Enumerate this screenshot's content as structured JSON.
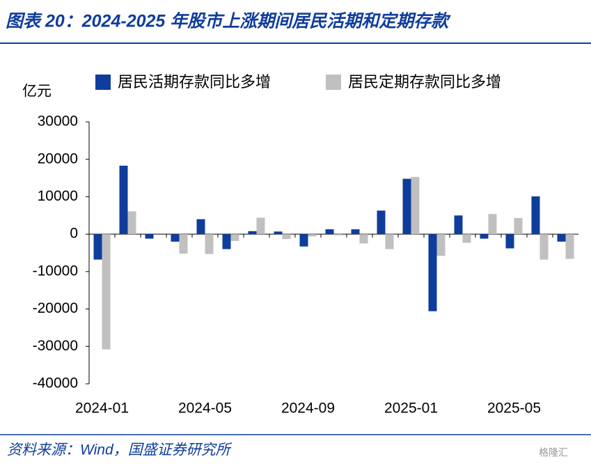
{
  "chart_data": {
    "type": "bar",
    "title": "图表 20：2024-2025 年股市上涨期间居民活期和定期存款",
    "y_label": "亿元",
    "source": "资料来源：Wind，国盛证券研究所",
    "watermark": "格隆汇",
    "categories": [
      "2024-01",
      null,
      null,
      null,
      "2024-05",
      null,
      null,
      null,
      "2024-09",
      null,
      null,
      null,
      "2025-01",
      null,
      null,
      null,
      "2025-05",
      null,
      null
    ],
    "series": [
      {
        "name": "居民活期存款同比多增",
        "color": "#0f3d9c",
        "values": [
          -6800,
          18300,
          -1200,
          -2000,
          4000,
          -4000,
          800,
          700,
          -3300,
          1300,
          1300,
          6300,
          14800,
          -20600,
          5000,
          -1200,
          -3800,
          10100,
          -2000
        ]
      },
      {
        "name": "居民定期存款同比多增",
        "color": "#c0c0c0",
        "values": [
          -30800,
          6100,
          0,
          -5200,
          -5300,
          -1800,
          4400,
          -1300,
          -600,
          -300,
          -2500,
          -4000,
          15300,
          -5800,
          -2300,
          5400,
          4300,
          -6800,
          -6600
        ]
      }
    ],
    "ylim": [
      -40000,
      30000
    ],
    "yticks": [
      -40000,
      -30000,
      -20000,
      -10000,
      0,
      10000,
      20000,
      30000
    ],
    "grid": false
  }
}
